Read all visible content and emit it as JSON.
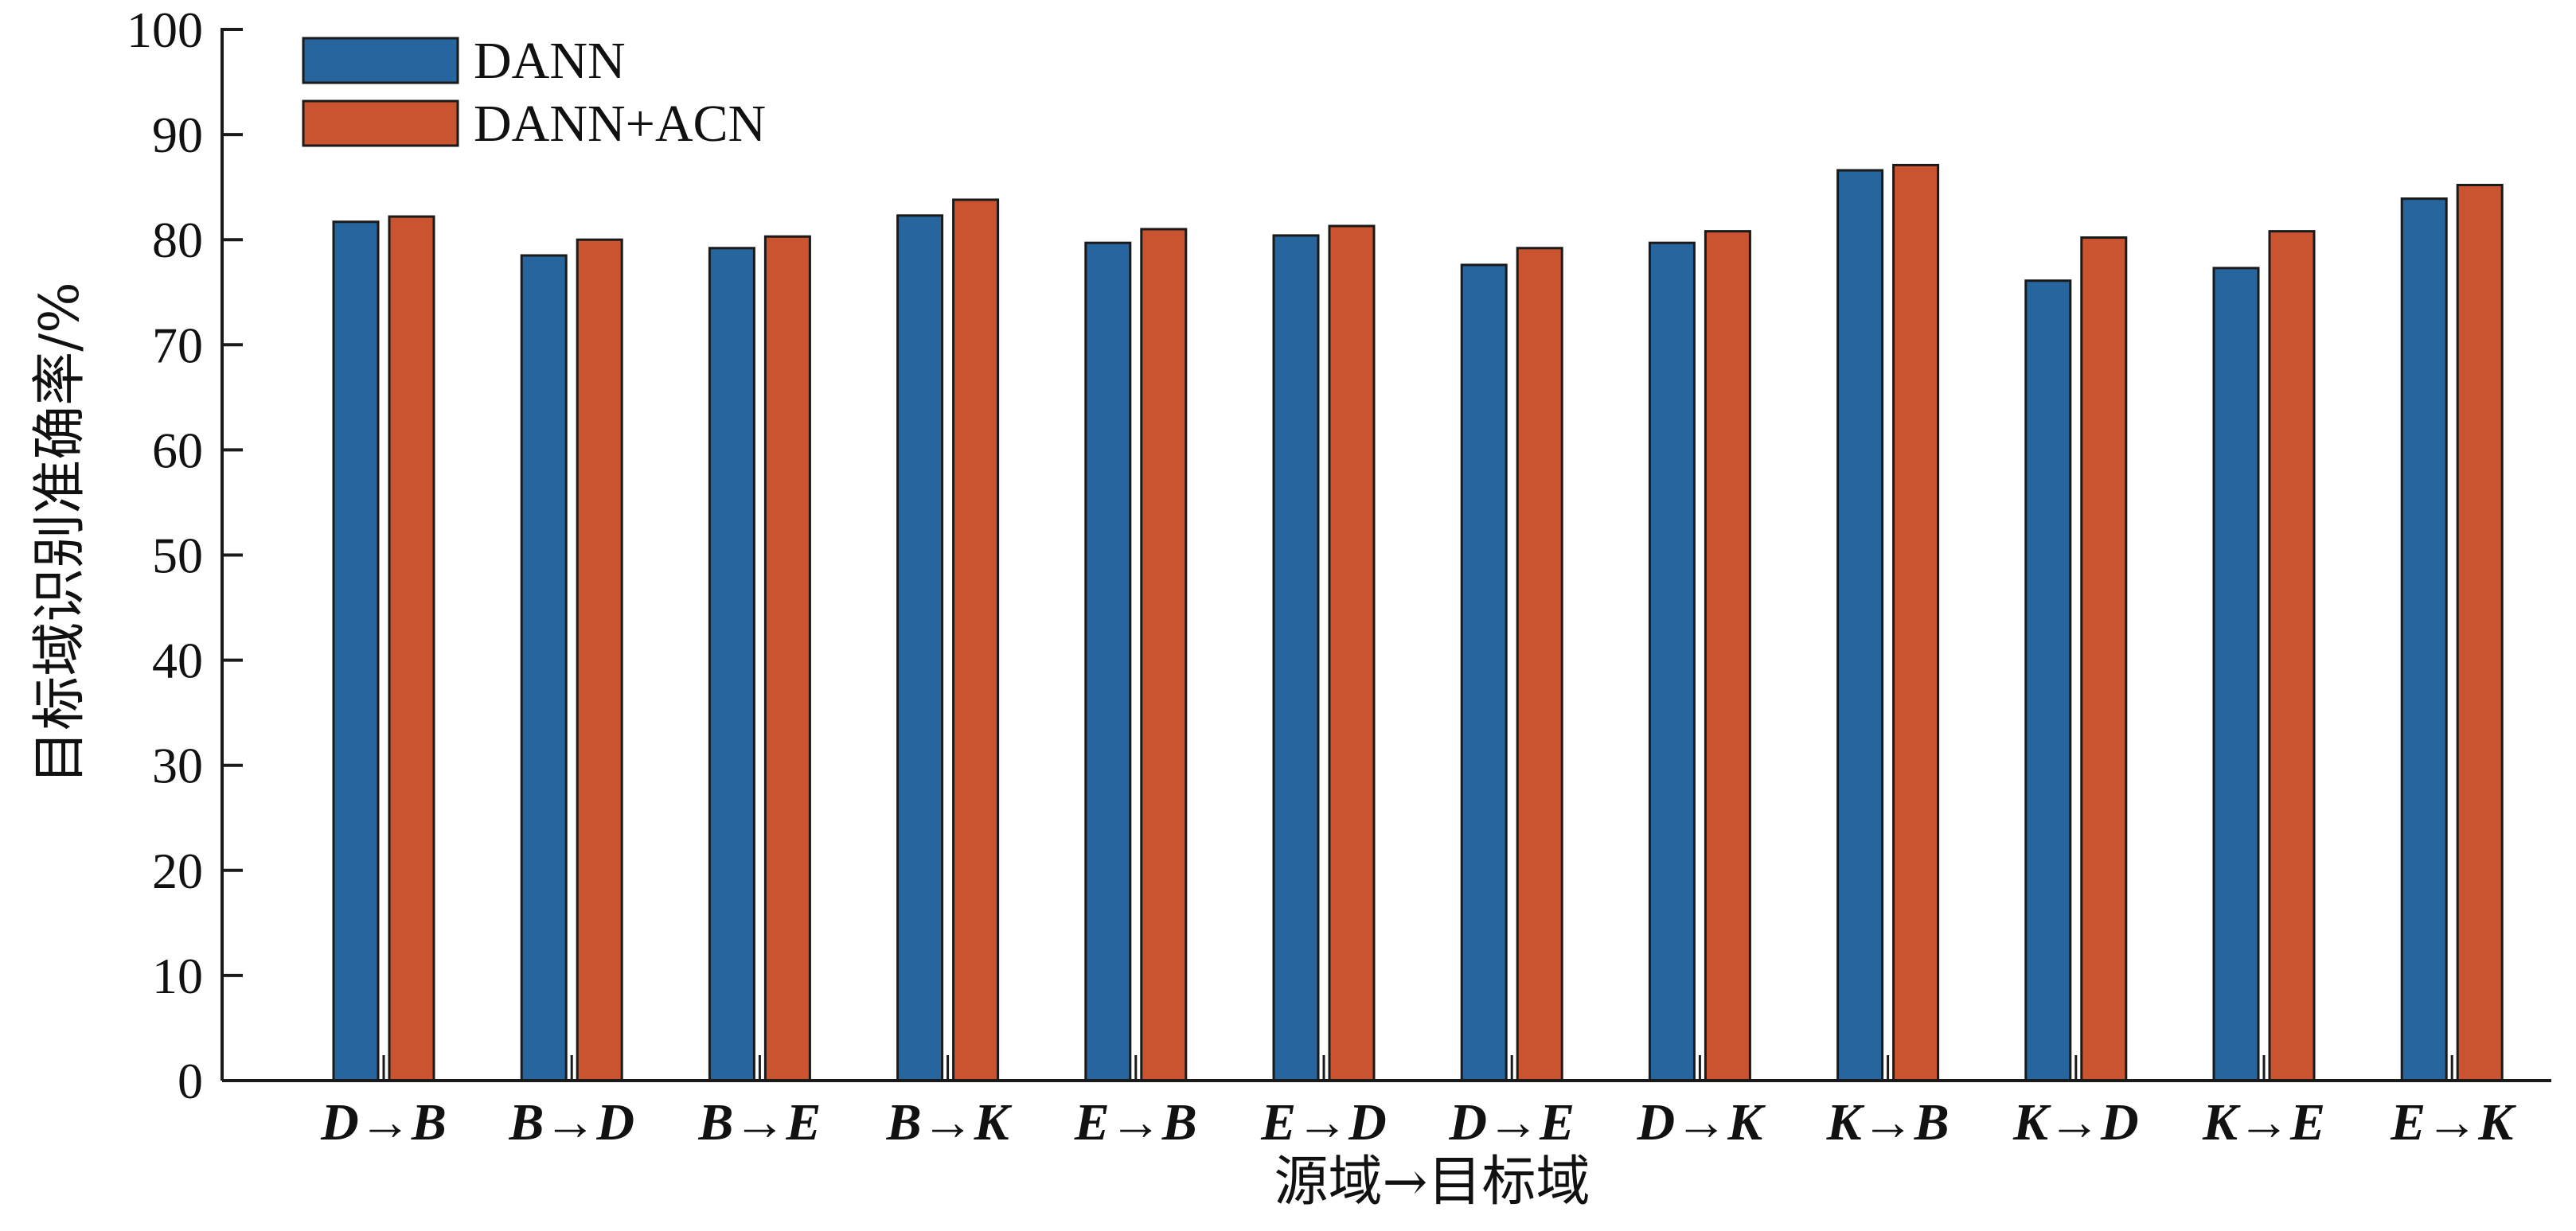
{
  "chart_data": {
    "type": "bar",
    "categories": [
      "D→B",
      "B→D",
      "B→E",
      "B→K",
      "E→B",
      "E→D",
      "D→E",
      "D→K",
      "K→B",
      "K→D",
      "K→E",
      "E→K"
    ],
    "series": [
      {
        "name": "DANN",
        "color": "#26659d",
        "values": [
          81.7,
          78.5,
          79.2,
          82.3,
          79.7,
          80.4,
          77.6,
          79.7,
          86.6,
          76.1,
          77.3,
          83.9
        ]
      },
      {
        "name": "DANN+ACN",
        "color": "#cb5430",
        "values": [
          82.2,
          80.0,
          80.3,
          83.8,
          81.0,
          81.3,
          79.2,
          80.8,
          87.1,
          80.2,
          80.8,
          85.2
        ]
      }
    ],
    "xlabel": "源域→目标域",
    "ylabel": "目标域识别准确率/%",
    "ylim": [
      0,
      100
    ],
    "yticks": [
      0,
      10,
      20,
      30,
      40,
      50,
      60,
      70,
      80,
      90,
      100
    ],
    "grid": false,
    "legend_position": "top-left"
  }
}
